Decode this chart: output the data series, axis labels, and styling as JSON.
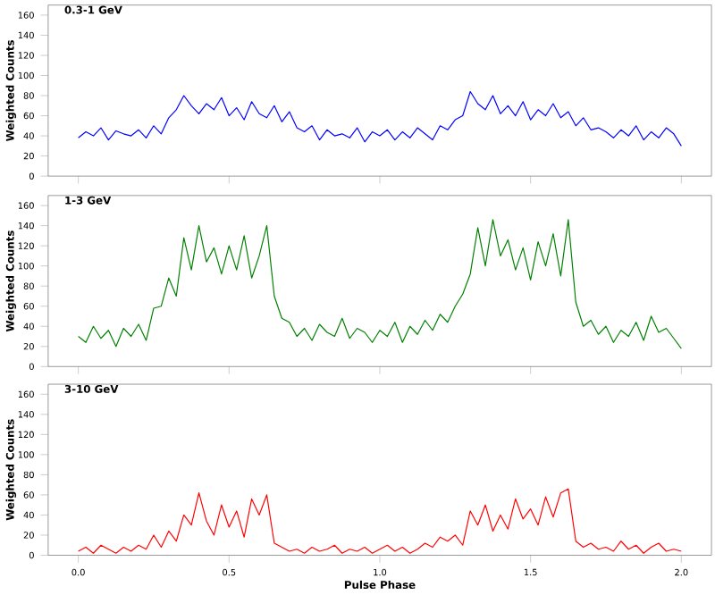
{
  "chart_data": [
    {
      "type": "line",
      "title": "0.3-1 GeV",
      "ylabel": "Weighted Counts",
      "xlim": [
        -0.1,
        2.1
      ],
      "ylim": [
        0,
        170
      ],
      "xticks": [
        {
          "value": 0,
          "label": null
        },
        {
          "value": 0.5,
          "label": null
        },
        {
          "value": 1,
          "label": null
        },
        {
          "value": 1.5,
          "label": null
        },
        {
          "value": 2,
          "label": null
        }
      ],
      "yticks": [
        0,
        20,
        40,
        60,
        80,
        100,
        120,
        140,
        160
      ],
      "tick_labels": "y",
      "grid": false,
      "x": [
        0,
        0.025,
        0.05,
        0.075,
        0.1,
        0.125,
        0.15,
        0.175,
        0.2,
        0.225,
        0.25,
        0.275,
        0.3,
        0.325,
        0.35,
        0.375,
        0.4,
        0.425,
        0.45,
        0.475,
        0.5,
        0.525,
        0.55,
        0.575,
        0.6,
        0.625,
        0.65,
        0.675,
        0.7,
        0.725,
        0.75,
        0.775,
        0.8,
        0.825,
        0.85,
        0.875,
        0.9,
        0.925,
        0.95,
        0.975,
        1,
        1.025,
        1.05,
        1.075,
        1.1,
        1.125,
        1.15,
        1.175,
        1.2,
        1.225,
        1.25,
        1.275,
        1.3,
        1.325,
        1.35,
        1.375,
        1.4,
        1.425,
        1.45,
        1.475,
        1.5,
        1.525,
        1.55,
        1.575,
        1.6,
        1.625,
        1.65,
        1.675,
        1.7,
        1.725,
        1.75,
        1.775,
        1.8,
        1.825,
        1.85,
        1.875,
        1.9,
        1.925,
        1.95,
        1.975,
        2
      ],
      "series": [
        {
          "color": "#0000ff",
          "values": [
            38,
            44,
            40,
            48,
            36,
            45,
            42,
            40,
            46,
            38,
            50,
            42,
            58,
            66,
            80,
            70,
            62,
            72,
            66,
            78,
            60,
            68,
            56,
            74,
            62,
            58,
            70,
            54,
            64,
            48,
            44,
            50,
            36,
            46,
            40,
            42,
            38,
            48,
            34,
            44,
            40,
            46,
            36,
            44,
            38,
            48,
            42,
            36,
            50,
            46,
            56,
            60,
            84,
            72,
            66,
            80,
            62,
            70,
            60,
            74,
            56,
            66,
            60,
            72,
            58,
            64,
            50,
            58,
            46,
            48,
            44,
            38,
            46,
            40,
            50,
            36,
            44,
            38,
            48,
            42,
            30
          ]
        }
      ]
    },
    {
      "type": "line",
      "title": "1-3 GeV",
      "ylabel": "Weighted Counts",
      "xlim": [
        -0.1,
        2.1
      ],
      "ylim": [
        0,
        170
      ],
      "xticks": [
        {
          "value": 0,
          "label": null
        },
        {
          "value": 0.5,
          "label": null
        },
        {
          "value": 1,
          "label": null
        },
        {
          "value": 1.5,
          "label": null
        },
        {
          "value": 2,
          "label": null
        }
      ],
      "yticks": [
        0,
        20,
        40,
        60,
        80,
        100,
        120,
        140,
        160
      ],
      "tick_labels": "y",
      "grid": false,
      "x": [
        0,
        0.025,
        0.05,
        0.075,
        0.1,
        0.125,
        0.15,
        0.175,
        0.2,
        0.225,
        0.25,
        0.275,
        0.3,
        0.325,
        0.35,
        0.375,
        0.4,
        0.425,
        0.45,
        0.475,
        0.5,
        0.525,
        0.55,
        0.575,
        0.6,
        0.625,
        0.65,
        0.675,
        0.7,
        0.725,
        0.75,
        0.775,
        0.8,
        0.825,
        0.85,
        0.875,
        0.9,
        0.925,
        0.95,
        0.975,
        1,
        1.025,
        1.05,
        1.075,
        1.1,
        1.125,
        1.15,
        1.175,
        1.2,
        1.225,
        1.25,
        1.275,
        1.3,
        1.325,
        1.35,
        1.375,
        1.4,
        1.425,
        1.45,
        1.475,
        1.5,
        1.525,
        1.55,
        1.575,
        1.6,
        1.625,
        1.65,
        1.675,
        1.7,
        1.725,
        1.75,
        1.775,
        1.8,
        1.825,
        1.85,
        1.875,
        1.9,
        1.925,
        1.95,
        1.975,
        2
      ],
      "series": [
        {
          "color": "#008000",
          "values": [
            30,
            24,
            40,
            28,
            36,
            20,
            38,
            30,
            42,
            26,
            58,
            60,
            88,
            70,
            128,
            96,
            140,
            104,
            118,
            92,
            120,
            96,
            130,
            88,
            110,
            140,
            70,
            48,
            44,
            30,
            38,
            26,
            42,
            34,
            30,
            48,
            28,
            38,
            34,
            24,
            36,
            30,
            44,
            24,
            40,
            32,
            46,
            36,
            52,
            44,
            60,
            72,
            92,
            138,
            100,
            146,
            110,
            126,
            96,
            118,
            86,
            124,
            100,
            132,
            90,
            146,
            64,
            40,
            46,
            32,
            40,
            24,
            36,
            30,
            44,
            26,
            50,
            34,
            38,
            28,
            18
          ]
        }
      ]
    },
    {
      "type": "line",
      "title": "3-10 GeV",
      "ylabel": "Weighted Counts",
      "xlabel": "Pulse Phase",
      "xlim": [
        -0.1,
        2.1
      ],
      "ylim": [
        0,
        170
      ],
      "xticks": [
        {
          "value": 0,
          "label": "0.0"
        },
        {
          "value": 0.5,
          "label": "0.5"
        },
        {
          "value": 1,
          "label": "1.0"
        },
        {
          "value": 1.5,
          "label": "1.5"
        },
        {
          "value": 2,
          "label": "2.0"
        }
      ],
      "yticks": [
        0,
        20,
        40,
        60,
        80,
        100,
        120,
        140,
        160
      ],
      "grid": false,
      "x": [
        0,
        0.025,
        0.05,
        0.075,
        0.1,
        0.125,
        0.15,
        0.175,
        0.2,
        0.225,
        0.25,
        0.275,
        0.3,
        0.325,
        0.35,
        0.375,
        0.4,
        0.425,
        0.45,
        0.475,
        0.5,
        0.525,
        0.55,
        0.575,
        0.6,
        0.625,
        0.65,
        0.675,
        0.7,
        0.725,
        0.75,
        0.775,
        0.8,
        0.825,
        0.85,
        0.875,
        0.9,
        0.925,
        0.95,
        0.975,
        1,
        1.025,
        1.05,
        1.075,
        1.1,
        1.125,
        1.15,
        1.175,
        1.2,
        1.225,
        1.25,
        1.275,
        1.3,
        1.325,
        1.35,
        1.375,
        1.4,
        1.425,
        1.45,
        1.475,
        1.5,
        1.525,
        1.55,
        1.575,
        1.6,
        1.625,
        1.65,
        1.675,
        1.7,
        1.725,
        1.75,
        1.775,
        1.8,
        1.825,
        1.85,
        1.875,
        1.9,
        1.925,
        1.95,
        1.975,
        2
      ],
      "series": [
        {
          "color": "#ff0000",
          "values": [
            4,
            8,
            2,
            10,
            6,
            2,
            8,
            4,
            10,
            6,
            20,
            8,
            24,
            14,
            40,
            30,
            62,
            34,
            20,
            50,
            28,
            44,
            18,
            56,
            40,
            60,
            12,
            8,
            4,
            6,
            2,
            8,
            4,
            6,
            10,
            2,
            6,
            4,
            8,
            2,
            6,
            10,
            4,
            8,
            2,
            6,
            12,
            8,
            18,
            14,
            20,
            10,
            44,
            30,
            50,
            24,
            40,
            26,
            56,
            36,
            46,
            30,
            58,
            38,
            62,
            66,
            14,
            8,
            12,
            6,
            8,
            4,
            14,
            6,
            10,
            2,
            8,
            12,
            4,
            6,
            4
          ]
        }
      ]
    }
  ]
}
